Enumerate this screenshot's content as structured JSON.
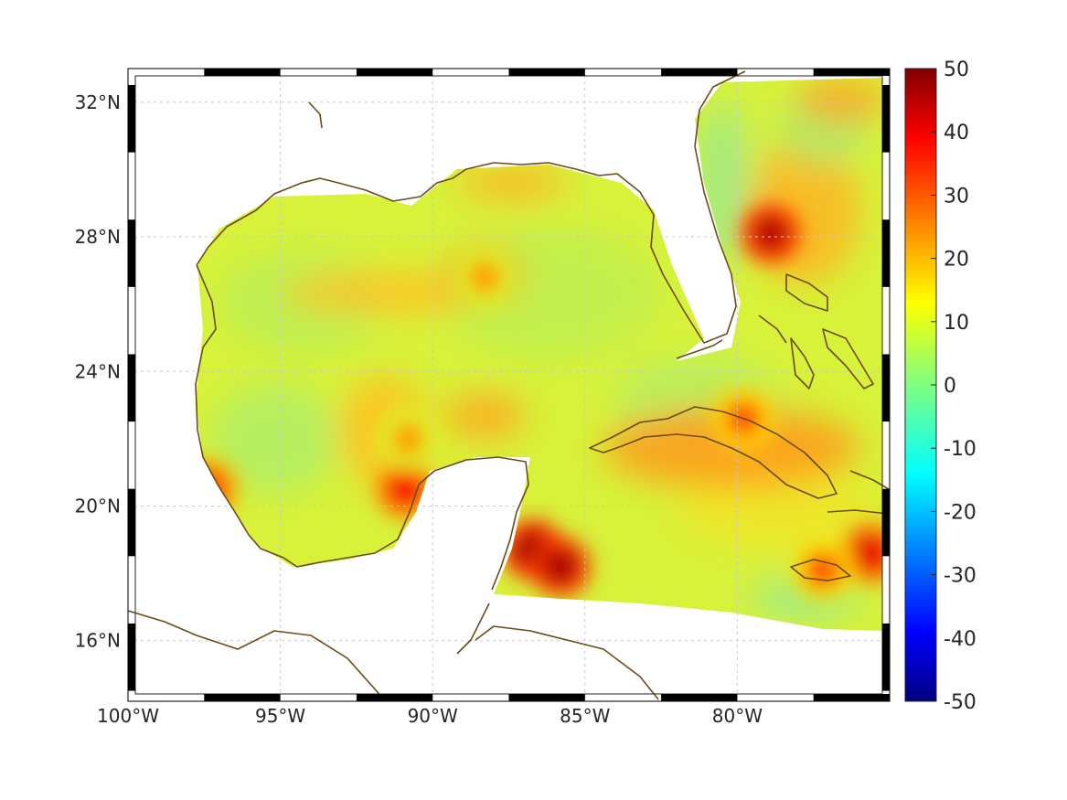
{
  "map": {
    "lon_ticks": [
      "100°W",
      "95°W",
      "90°W",
      "85°W",
      "80°W"
    ],
    "lon_tick_values": [
      -100,
      -95,
      -90,
      -85,
      -80
    ],
    "lat_ticks": [
      "32°N",
      "28°N",
      "24°N",
      "20°N",
      "16°N"
    ],
    "lat_tick_values": [
      32,
      28,
      24,
      20,
      16
    ],
    "lon_range": [
      -100,
      -75
    ],
    "lat_range": [
      14.2,
      33
    ],
    "grid": true,
    "coastline_color": "#6b4a1a",
    "colormap": "jet"
  },
  "colorbar": {
    "ticks": [
      "50",
      "40",
      "30",
      "20",
      "10",
      "0",
      "-10",
      "-20",
      "-30",
      "-40",
      "-50"
    ],
    "range": [
      -50,
      50
    ]
  },
  "chart_data": {
    "type": "heatmap",
    "title": "",
    "xlabel": "",
    "ylabel": "",
    "xlim": [
      -100,
      -75
    ],
    "ylim": [
      14.2,
      33
    ],
    "clim": [
      -50,
      50
    ],
    "hotspots": [
      {
        "lon": -86.7,
        "lat": 18.7,
        "value": 48
      },
      {
        "lon": -85.8,
        "lat": 18.2,
        "value": 46
      },
      {
        "lon": -78.9,
        "lat": 28.1,
        "value": 45
      },
      {
        "lon": -75.6,
        "lat": 18.6,
        "value": 40
      },
      {
        "lon": -90.9,
        "lat": 20.5,
        "value": 38
      },
      {
        "lon": -97.4,
        "lat": 20.5,
        "value": 36
      },
      {
        "lon": -79.8,
        "lat": 22.6,
        "value": 30
      },
      {
        "lon": -77.2,
        "lat": 18.1,
        "value": 30
      },
      {
        "lon": -88.3,
        "lat": 26.8,
        "value": 22
      },
      {
        "lon": -90.8,
        "lat": 22.0,
        "value": 22
      }
    ],
    "background_value": 10
  }
}
